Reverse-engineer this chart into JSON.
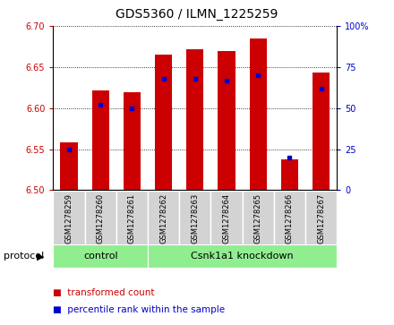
{
  "title": "GDS5360 / ILMN_1225259",
  "samples": [
    "GSM1278259",
    "GSM1278260",
    "GSM1278261",
    "GSM1278262",
    "GSM1278263",
    "GSM1278264",
    "GSM1278265",
    "GSM1278266",
    "GSM1278267"
  ],
  "red_values": [
    6.558,
    6.622,
    6.619,
    6.665,
    6.672,
    6.67,
    6.685,
    6.537,
    6.643
  ],
  "blue_values_pct": [
    25,
    52,
    50,
    68,
    68,
    67,
    70,
    20,
    62
  ],
  "ylim_left": [
    6.5,
    6.7
  ],
  "ylim_right": [
    0,
    100
  ],
  "yticks_left": [
    6.5,
    6.55,
    6.6,
    6.65,
    6.7
  ],
  "yticks_right": [
    0,
    25,
    50,
    75,
    100
  ],
  "bar_color": "#cc0000",
  "dot_color": "#0000cc",
  "bar_width": 0.55,
  "bar_base": 6.5,
  "ctrl_count": 3,
  "ctrl_label": "control",
  "kd_label": "Csnk1a1 knockdown",
  "group_color": "#90ee90",
  "label_bg_color": "#d3d3d3",
  "label_div_color": "#ffffff",
  "legend_items": [
    {
      "label": "transformed count",
      "color": "#cc0000"
    },
    {
      "label": "percentile rank within the sample",
      "color": "#0000cc"
    }
  ],
  "protocol_label": "protocol",
  "background_color": "#ffffff",
  "tick_color_left": "#cc0000",
  "tick_color_right": "#0000cc",
  "title_fontsize": 10,
  "tick_fontsize": 7,
  "sample_fontsize": 6,
  "group_fontsize": 8,
  "legend_fontsize": 7.5,
  "protocol_fontsize": 8
}
